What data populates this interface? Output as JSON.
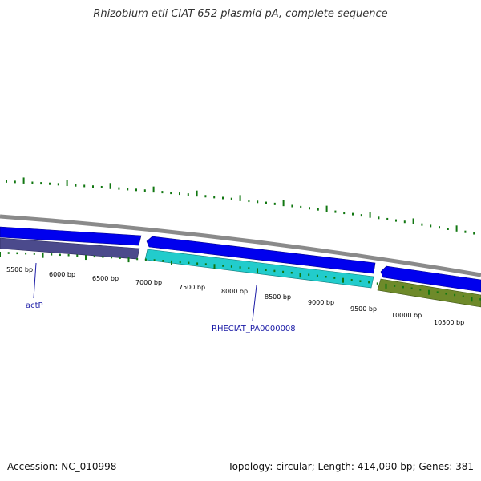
{
  "title": "Rhizobium etli CIAT 652 plasmid pA, complete sequence",
  "footer": {
    "accession": "Accession: NC_010998",
    "stats": "Topology: circular; Length: 414,090 bp; Genes: 381"
  },
  "colors": {
    "backbone": "#8a8a8a",
    "forward_gene": "#0000ee",
    "reverse_gene_purple": "#4b4a8c",
    "reverse_gene_cyan": "#22cccc",
    "reverse_gene_olive": "#6e8a2a",
    "gc_ticks": "#117711",
    "label": "#1a1aa6"
  },
  "ruler": {
    "labels": [
      "5500 bp",
      "6000 bp",
      "6500 bp",
      "7000 bp",
      "7500 bp",
      "8000 bp",
      "8500 bp",
      "9000 bp",
      "9500 bp",
      "10000 bp",
      "10500 bp"
    ]
  },
  "gene_labels": {
    "actP": "actP",
    "rheciat": "RHECIAT_PA0000008"
  }
}
